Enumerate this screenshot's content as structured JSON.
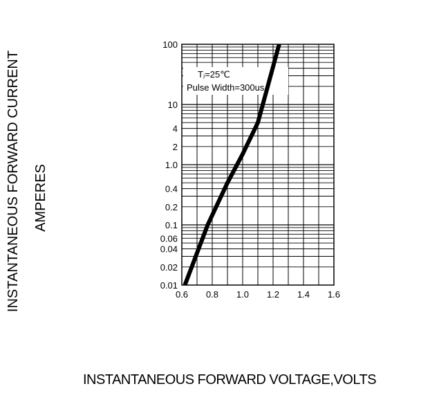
{
  "chart_data": {
    "type": "line",
    "title": "",
    "xlabel": "INSTANTANEOUS FORWARD VOLTAGE,VOLTS",
    "ylabel_line1": "INSTANTANEOUS FORWARD CURRENT",
    "ylabel_line2": "AMPERES",
    "x_scale": "linear",
    "y_scale": "log",
    "xlim": [
      0.6,
      1.6
    ],
    "ylim": [
      0.01,
      100
    ],
    "x_ticks": [
      "0.6",
      "0.8",
      "1.0",
      "1.2",
      "1.4",
      "1.6"
    ],
    "y_ticks": [
      "100",
      "10",
      "4",
      "2",
      "1.0",
      "0.4",
      "0.2",
      "0.1",
      "0.06",
      "0.04",
      "0.02",
      "0.01"
    ],
    "annotation_line1": "Tⱼ=25℃",
    "annotation_line2": "Pulse Width=300us",
    "grid": true,
    "series": [
      {
        "x": [
          0.62,
          0.77,
          0.9,
          1.0,
          1.1,
          1.24
        ],
        "y": [
          0.01,
          0.1,
          0.5,
          1.5,
          5,
          100
        ]
      }
    ]
  }
}
